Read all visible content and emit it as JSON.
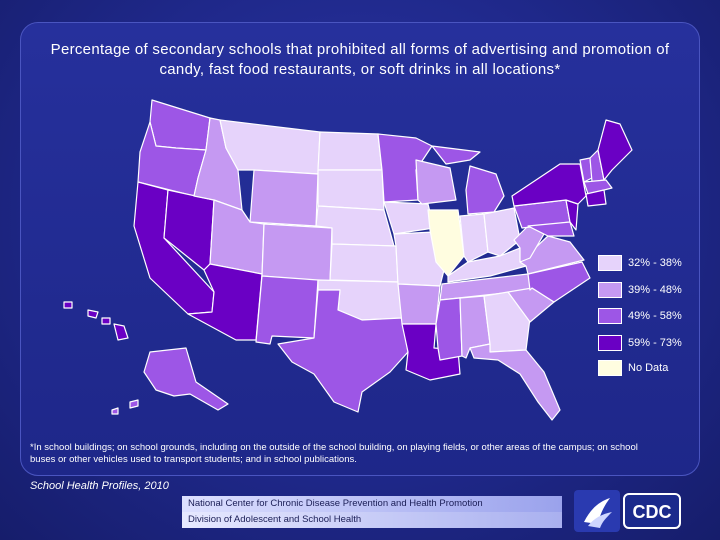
{
  "title": "Percentage of secondary schools that prohibited all forms of advertising and promotion of candy, fast food restaurants, or soft drinks in all locations*",
  "legend": {
    "items": [
      {
        "label": "32% - 38%",
        "color": "#e6d3fb"
      },
      {
        "label": "39% - 48%",
        "color": "#c599f2"
      },
      {
        "label": "49% - 58%",
        "color": "#9d56e6"
      },
      {
        "label": "59% - 73%",
        "color": "#6a00c4"
      },
      {
        "label": "No Data",
        "color": "#fffde0"
      }
    ]
  },
  "footnote": "*In school buildings; on school grounds, including on the outside of the school building, on playing fields, or other areas of the campus; on school buses or other vehicles used to transport students; and in school publications.",
  "source": "School Health Profiles, 2010",
  "footer": {
    "line1": "National Center for Chronic Disease Prevention and Health Promotion",
    "line2": "Division of Adolescent and School Health",
    "logo_text": "CDC"
  }
}
